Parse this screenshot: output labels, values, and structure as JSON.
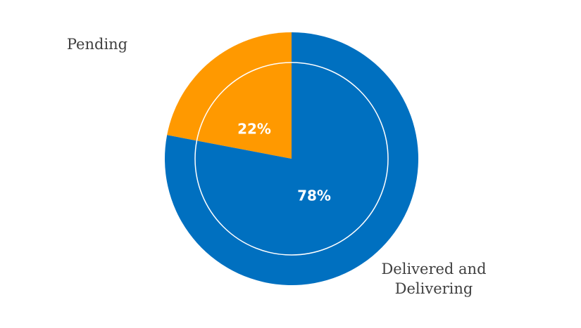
{
  "chart_data": {
    "type": "pie",
    "categories": [
      "Pending",
      "Delivered and Delivering"
    ],
    "values": [
      22,
      78
    ],
    "data_labels": [
      "22%",
      "78%"
    ],
    "category_labels": [
      [
        "Pending"
      ],
      [
        "Delivered and",
        "Delivering"
      ]
    ],
    "colors": [
      "#FF9900",
      "#0070C0"
    ],
    "start_angle_deg": 0,
    "direction": "counterclockwise",
    "legend": "none",
    "title": ""
  }
}
